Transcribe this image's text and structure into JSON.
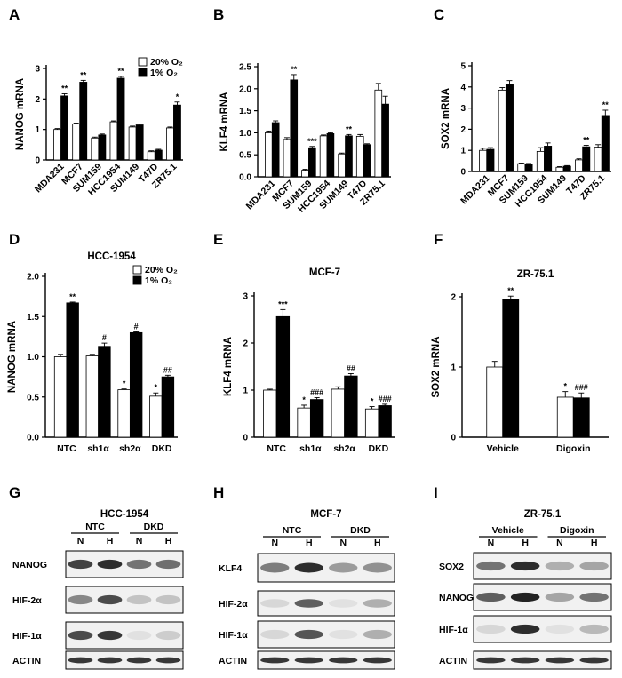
{
  "colors": {
    "normoxia": "#ffffff",
    "hypoxia": "#000000",
    "stroke": "#000000"
  },
  "legend": {
    "normoxia": "20% O₂",
    "hypoxia": "1% O₂"
  },
  "chart_data": [
    {
      "panel": "A",
      "type": "bar",
      "ylabel": "NANOG mRNA",
      "title": "",
      "categories": [
        "MDA231",
        "MCF7",
        "SUM159",
        "HCC1954",
        "SUM149",
        "T47D",
        "ZR75.1"
      ],
      "series": [
        {
          "name": "20% O₂",
          "values": [
            1.0,
            1.18,
            0.72,
            1.25,
            1.08,
            0.27,
            1.05
          ],
          "errors": [
            0.03,
            0.03,
            0.03,
            0.03,
            0.03,
            0.03,
            0.03
          ]
        },
        {
          "name": "1% O₂",
          "values": [
            2.1,
            2.55,
            0.82,
            2.68,
            1.15,
            0.32,
            1.8
          ],
          "errors": [
            0.07,
            0.06,
            0.03,
            0.06,
            0.03,
            0.03,
            0.1
          ]
        }
      ],
      "significance": [
        {
          "index": 0,
          "series": 1,
          "text": "**"
        },
        {
          "index": 1,
          "series": 1,
          "text": "**"
        },
        {
          "index": 3,
          "series": 1,
          "text": "**"
        },
        {
          "index": 6,
          "series": 1,
          "text": "*"
        }
      ],
      "ylim": [
        0,
        3
      ],
      "yticks": [
        0,
        1,
        2,
        3
      ],
      "legend_shown": true
    },
    {
      "panel": "B",
      "type": "bar",
      "ylabel": "KLF4 mRNA",
      "title": "",
      "categories": [
        "MDA231",
        "MCF7",
        "SUM159",
        "HCC1954",
        "SUM149",
        "T47D",
        "ZR75.1"
      ],
      "series": [
        {
          "name": "20% O₂",
          "values": [
            1.0,
            0.85,
            0.15,
            0.93,
            0.52,
            0.92,
            1.97
          ],
          "errors": [
            0.04,
            0.04,
            0.02,
            0.02,
            0.02,
            0.04,
            0.15
          ]
        },
        {
          "name": "1% O₂",
          "values": [
            1.23,
            2.2,
            0.66,
            0.98,
            0.93,
            0.73,
            1.65
          ],
          "errors": [
            0.04,
            0.12,
            0.03,
            0.02,
            0.03,
            0.02,
            0.18
          ]
        }
      ],
      "significance": [
        {
          "index": 1,
          "series": 1,
          "text": "**"
        },
        {
          "index": 2,
          "series": 1,
          "text": "***"
        },
        {
          "index": 4,
          "series": 1,
          "text": "**"
        }
      ],
      "ylim": [
        0,
        2.5
      ],
      "yticks": [
        0.0,
        0.5,
        1.0,
        1.5,
        2.0,
        2.5
      ],
      "legend_shown": false
    },
    {
      "panel": "C",
      "type": "bar",
      "ylabel": "SOX2 mRNA",
      "title": "",
      "categories": [
        "MDA231",
        "MCF7",
        "SUM159",
        "HCC1954",
        "SUM149",
        "T47D",
        "ZR75.1"
      ],
      "series": [
        {
          "name": "20% O₂",
          "values": [
            1.0,
            3.85,
            0.37,
            0.95,
            0.2,
            0.55,
            1.15
          ],
          "errors": [
            0.1,
            0.12,
            0.03,
            0.18,
            0.03,
            0.05,
            0.12
          ]
        },
        {
          "name": "1% O₂",
          "values": [
            1.05,
            4.1,
            0.35,
            1.2,
            0.25,
            1.17,
            2.65
          ],
          "errors": [
            0.08,
            0.2,
            0.03,
            0.15,
            0.03,
            0.07,
            0.25
          ]
        }
      ],
      "significance": [
        {
          "index": 5,
          "series": 1,
          "text": "**"
        },
        {
          "index": 6,
          "series": 1,
          "text": "**"
        }
      ],
      "ylim": [
        0,
        5
      ],
      "yticks": [
        0,
        1,
        2,
        3,
        4,
        5
      ],
      "legend_shown": false
    },
    {
      "panel": "D",
      "type": "bar",
      "ylabel": "NANOG mRNA",
      "title": "HCC-1954",
      "categories": [
        "NTC",
        "sh1α",
        "sh2α",
        "DKD"
      ],
      "series": [
        {
          "name": "20% O₂",
          "values": [
            1.0,
            1.01,
            0.59,
            0.51
          ],
          "errors": [
            0.03,
            0.02,
            0.01,
            0.04
          ]
        },
        {
          "name": "1% O₂",
          "values": [
            1.67,
            1.13,
            1.3,
            0.75
          ],
          "errors": [
            0.01,
            0.04,
            0.01,
            0.02
          ]
        }
      ],
      "significance": [
        {
          "index": 0,
          "series": 1,
          "text": "**"
        },
        {
          "index": 1,
          "series": 1,
          "text": "#"
        },
        {
          "index": 2,
          "series": 0,
          "text": "*"
        },
        {
          "index": 2,
          "series": 1,
          "text": "#"
        },
        {
          "index": 3,
          "series": 0,
          "text": "*"
        },
        {
          "index": 3,
          "series": 1,
          "text": "##"
        }
      ],
      "ylim": [
        0,
        2.0
      ],
      "yticks": [
        0.0,
        0.5,
        1.0,
        1.5,
        2.0
      ],
      "legend_shown": true
    },
    {
      "panel": "E",
      "type": "bar",
      "ylabel": "KLF4 mRNA",
      "title": "MCF-7",
      "categories": [
        "NTC",
        "sh1α",
        "sh2α",
        "DKD"
      ],
      "series": [
        {
          "name": "20% O₂",
          "values": [
            1.0,
            0.62,
            1.02,
            0.6
          ],
          "errors": [
            0.02,
            0.06,
            0.05,
            0.05
          ]
        },
        {
          "name": "1% O₂",
          "values": [
            2.56,
            0.8,
            1.3,
            0.67
          ],
          "errors": [
            0.15,
            0.04,
            0.05,
            0.03
          ]
        }
      ],
      "significance": [
        {
          "index": 0,
          "series": 1,
          "text": "***"
        },
        {
          "index": 1,
          "series": 0,
          "text": "*"
        },
        {
          "index": 1,
          "series": 1,
          "text": "###"
        },
        {
          "index": 2,
          "series": 1,
          "text": "##"
        },
        {
          "index": 3,
          "series": 0,
          "text": "*"
        },
        {
          "index": 3,
          "series": 1,
          "text": "###"
        }
      ],
      "ylim": [
        0,
        3
      ],
      "yticks": [
        0,
        1,
        2,
        3
      ],
      "legend_shown": false
    },
    {
      "panel": "F",
      "type": "bar",
      "ylabel": "SOX2 mRNA",
      "title": "ZR-75.1",
      "categories": [
        "Vehicle",
        "Digoxin"
      ],
      "series": [
        {
          "name": "20% O₂",
          "values": [
            1.0,
            0.57
          ],
          "errors": [
            0.08,
            0.08
          ]
        },
        {
          "name": "1% O₂",
          "values": [
            1.96,
            0.56
          ],
          "errors": [
            0.05,
            0.07
          ]
        }
      ],
      "significance": [
        {
          "index": 0,
          "series": 1,
          "text": "**"
        },
        {
          "index": 1,
          "series": 0,
          "text": "*"
        },
        {
          "index": 1,
          "series": 1,
          "text": "###"
        }
      ],
      "ylim": [
        0,
        2
      ],
      "yticks": [
        0,
        1,
        2
      ],
      "legend_shown": false
    }
  ],
  "blots": [
    {
      "panel": "G",
      "title": "HCC-1954",
      "groups": [
        {
          "label": "NTC",
          "lanes": [
            "N",
            "H"
          ]
        },
        {
          "label": "DKD",
          "lanes": [
            "N",
            "H"
          ]
        }
      ],
      "rows": [
        {
          "label": "NANOG",
          "intensity": [
            0.85,
            0.95,
            0.6,
            0.62
          ]
        },
        {
          "label": "HIF-2α",
          "intensity": [
            0.5,
            0.8,
            0.2,
            0.2
          ]
        },
        {
          "label": "HIF-1α",
          "intensity": [
            0.8,
            0.9,
            0.05,
            0.15
          ]
        },
        {
          "label": "ACTIN",
          "intensity": [
            0.9,
            0.9,
            0.9,
            0.9
          ]
        }
      ]
    },
    {
      "panel": "H",
      "title": "MCF-7",
      "groups": [
        {
          "label": "NTC",
          "lanes": [
            "N",
            "H"
          ]
        },
        {
          "label": "DKD",
          "lanes": [
            "N",
            "H"
          ]
        }
      ],
      "rows": [
        {
          "label": "KLF4",
          "intensity": [
            0.55,
            0.95,
            0.4,
            0.45
          ]
        },
        {
          "label": "HIF-2α",
          "intensity": [
            0.1,
            0.7,
            0.05,
            0.3
          ]
        },
        {
          "label": "HIF-1α",
          "intensity": [
            0.1,
            0.75,
            0.05,
            0.3
          ]
        },
        {
          "label": "ACTIN",
          "intensity": [
            0.9,
            0.9,
            0.9,
            0.9
          ]
        }
      ]
    },
    {
      "panel": "I",
      "title": "ZR-75.1",
      "groups": [
        {
          "label": "Vehicle",
          "lanes": [
            "N",
            "H"
          ]
        },
        {
          "label": "Digoxin",
          "lanes": [
            "N",
            "H"
          ]
        }
      ],
      "rows": [
        {
          "label": "SOX2",
          "intensity": [
            0.6,
            0.95,
            0.3,
            0.35
          ]
        },
        {
          "label": "NANOG",
          "intensity": [
            0.7,
            1.0,
            0.35,
            0.6
          ]
        },
        {
          "label": "HIF-1α",
          "intensity": [
            0.1,
            0.95,
            0.05,
            0.25
          ]
        },
        {
          "label": "ACTIN",
          "intensity": [
            0.9,
            0.9,
            0.9,
            0.9
          ]
        }
      ]
    }
  ]
}
